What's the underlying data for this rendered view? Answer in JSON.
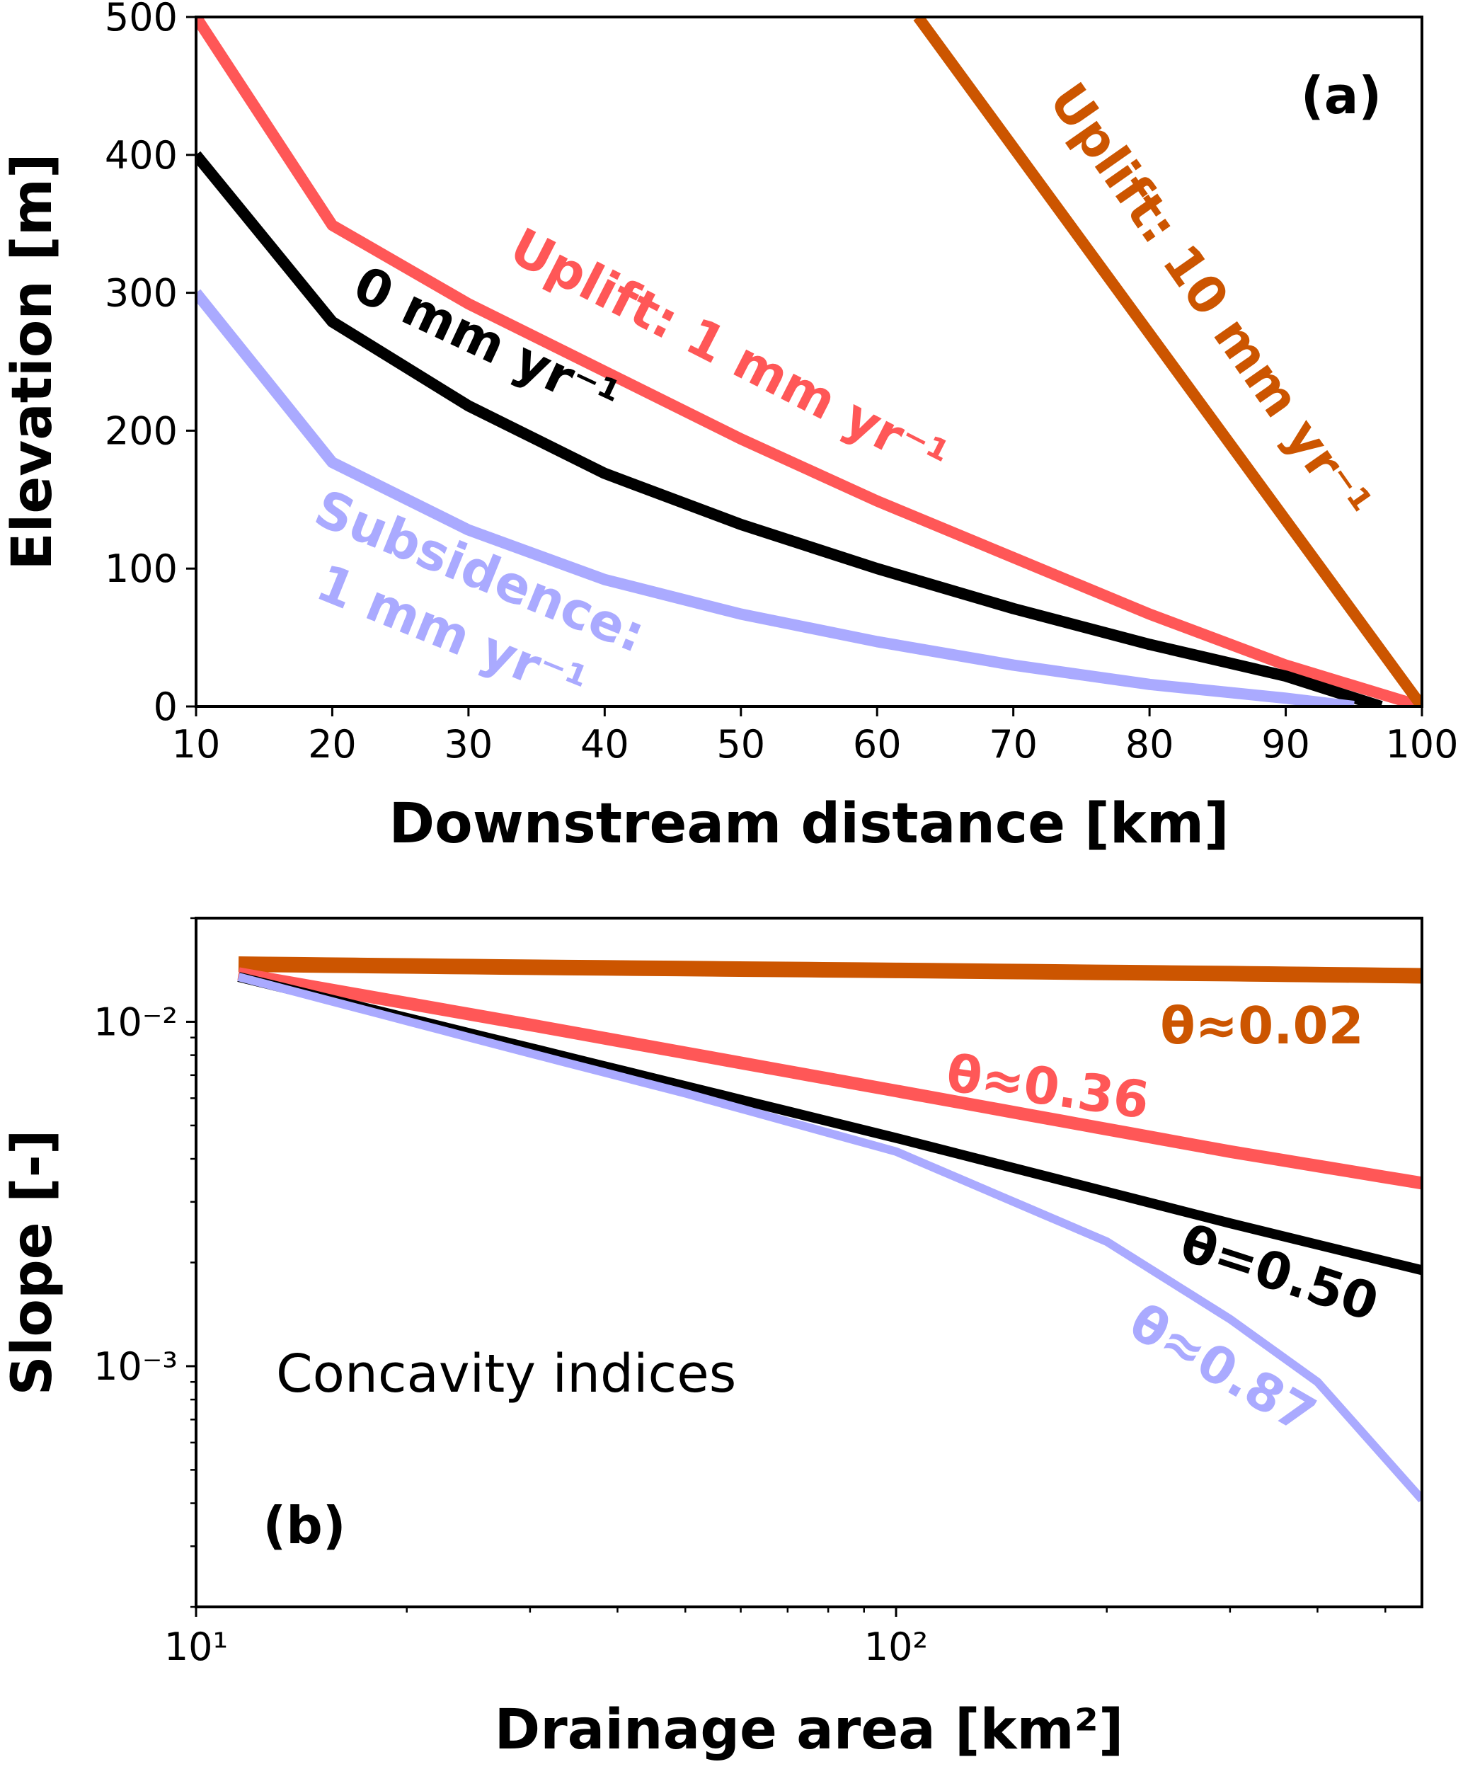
{
  "colors": {
    "uplift10": "#cc5500",
    "uplift1": "#ff5757",
    "zero": "#000000",
    "subsidence": "#aaaaff"
  },
  "chart_data": [
    {
      "type": "line",
      "panel": "(a)",
      "xlabel": "Downstream distance [km]",
      "ylabel": "Elevation [m]",
      "xlim": [
        10,
        100
      ],
      "ylim": [
        0,
        500
      ],
      "xticks": [
        10,
        20,
        30,
        40,
        50,
        60,
        70,
        80,
        90,
        100
      ],
      "yticks": [
        0,
        100,
        200,
        300,
        400,
        500
      ],
      "series": [
        {
          "name": "Uplift: 1 mm yr⁻¹",
          "color": "uplift1",
          "x": [
            10,
            20,
            30,
            40,
            50,
            60,
            70,
            80,
            90,
            100
          ],
          "y": [
            500,
            349,
            292,
            243,
            194,
            149,
            108,
            67,
            30,
            0
          ]
        },
        {
          "name": "0 mm yr⁻¹",
          "color": "zero",
          "x": [
            10,
            20,
            30,
            40,
            50,
            60,
            70,
            80,
            90,
            97
          ],
          "y": [
            400,
            279,
            218,
            169,
            132,
            100,
            71,
            45,
            22,
            0
          ]
        },
        {
          "name": "Subsidence:",
          "name2": "1 mm yr⁻¹",
          "color": "subsidence",
          "x": [
            10,
            20,
            30,
            40,
            50,
            60,
            70,
            80,
            90,
            95
          ],
          "y": [
            300,
            177,
            128,
            92,
            67,
            47,
            30,
            16,
            6,
            0
          ]
        },
        {
          "name": "Uplift: 10 mm yr⁻¹",
          "color": "uplift10",
          "x": [
            63,
            100
          ],
          "y": [
            500,
            0
          ]
        }
      ]
    },
    {
      "type": "line",
      "panel": "(b)",
      "xlabel": "Drainage area [km²]",
      "ylabel": "Slope [-]",
      "xscale": "log",
      "yscale": "log",
      "xlim": [
        10,
        564
      ],
      "ylim": [
        0.0002,
        0.02
      ],
      "xticks": [
        {
          "v": 10,
          "label": "10¹"
        },
        {
          "v": 100,
          "label": "10²"
        }
      ],
      "yticks": [
        {
          "v": 0.01,
          "label": "10⁻²"
        },
        {
          "v": 0.001,
          "label": "10⁻³"
        }
      ],
      "annotation": "Concavity indices",
      "series": [
        {
          "name": "θ≈0.02",
          "color": "uplift10",
          "x": [
            11.5,
            30,
            100,
            300,
            564
          ],
          "y": [
            0.0147,
            0.0144,
            0.0141,
            0.0138,
            0.0136
          ]
        },
        {
          "name": "θ≈0.36",
          "color": "uplift1",
          "x": [
            11.5,
            30,
            100,
            300,
            564
          ],
          "y": [
            0.0138,
            0.0098,
            0.0063,
            0.0042,
            0.0034
          ]
        },
        {
          "name": "θ=0.50",
          "color": "zero",
          "x": [
            11.5,
            30,
            100,
            300,
            564
          ],
          "y": [
            0.0135,
            0.0084,
            0.0046,
            0.0026,
            0.0019
          ]
        },
        {
          "name": "θ≈0.87",
          "color": "subsidence",
          "x": [
            11.5,
            30,
            50,
            100,
            200,
            300,
            400,
            564
          ],
          "y": [
            0.0135,
            0.0081,
            0.0062,
            0.0042,
            0.0023,
            0.00137,
            0.0009,
            0.00041
          ]
        }
      ]
    }
  ]
}
